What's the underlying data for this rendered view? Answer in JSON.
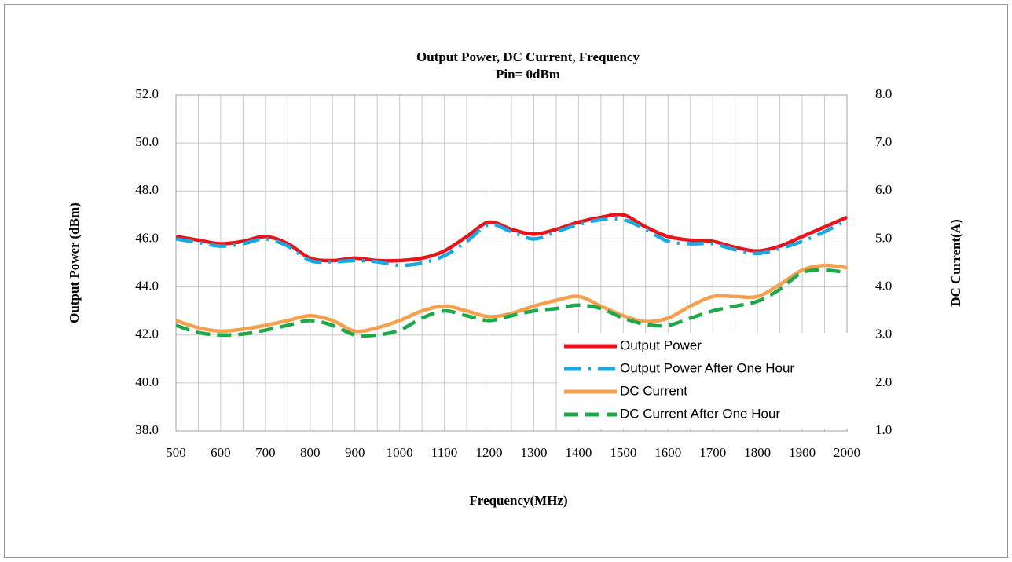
{
  "chart_data": {
    "type": "line",
    "title": "Output Power, DC Current,  Frequency",
    "subtitle": "Pin= 0dBm",
    "x_label": "Frequency(MHz)",
    "y_label": "Output Power (dBm)",
    "y2_label": "DC Current(A)",
    "x": [
      500,
      550,
      600,
      650,
      700,
      750,
      800,
      850,
      900,
      950,
      1000,
      1050,
      1100,
      1150,
      1200,
      1250,
      1300,
      1350,
      1400,
      1450,
      1500,
      1550,
      1600,
      1650,
      1700,
      1750,
      1800,
      1850,
      1900,
      1950,
      2000
    ],
    "xlim": [
      500,
      2000
    ],
    "xticks": [
      500,
      600,
      700,
      800,
      900,
      1000,
      1100,
      1200,
      1300,
      1400,
      1500,
      1600,
      1700,
      1800,
      1900,
      2000
    ],
    "ylim": [
      38,
      52
    ],
    "yticks": [
      {
        "value": 38,
        "label": "38.0"
      },
      {
        "value": 40,
        "label": "40.0"
      },
      {
        "value": 42,
        "label": "42.0"
      },
      {
        "value": 44,
        "label": "44.0"
      },
      {
        "value": 46,
        "label": "46.0"
      },
      {
        "value": 48,
        "label": "48.0"
      },
      {
        "value": 50,
        "label": "50.0"
      },
      {
        "value": 52,
        "label": "52.0"
      }
    ],
    "y2lim": [
      1,
      8
    ],
    "y2ticks": [
      {
        "value": 1,
        "label": "1.0"
      },
      {
        "value": 2,
        "label": "2.0"
      },
      {
        "value": 3,
        "label": "3.0"
      },
      {
        "value": 4,
        "label": "4.0"
      },
      {
        "value": 5,
        "label": "5.0"
      },
      {
        "value": 6,
        "label": "6.0"
      },
      {
        "value": 7,
        "label": "7.0"
      },
      {
        "value": 8,
        "label": "8.0"
      }
    ],
    "grid": true,
    "legend": "lower-right",
    "series": [
      {
        "name": "Output Power",
        "color": "#e8141b",
        "style": "solid",
        "values": [
          46.1,
          45.95,
          45.8,
          45.9,
          46.1,
          45.8,
          45.2,
          45.1,
          45.2,
          45.1,
          45.1,
          45.2,
          45.5,
          46.1,
          46.7,
          46.4,
          46.2,
          46.4,
          46.7,
          46.9,
          47.0,
          46.5,
          46.1,
          45.95,
          45.9,
          45.65,
          45.5,
          45.7,
          46.1,
          46.5,
          46.9
        ]
      },
      {
        "name": "Output Power After One Hour",
        "color": "#1ba8e0",
        "style": "dash-dot",
        "values": [
          46.0,
          45.85,
          45.7,
          45.8,
          46.0,
          45.7,
          45.1,
          45.05,
          45.1,
          45.05,
          44.9,
          45.0,
          45.3,
          45.9,
          46.6,
          46.3,
          46.0,
          46.3,
          46.6,
          46.8,
          46.8,
          46.4,
          45.9,
          45.8,
          45.8,
          45.55,
          45.4,
          45.6,
          45.9,
          46.3,
          46.8
        ]
      },
      {
        "name": "DC Current",
        "color": "#f5a04e",
        "style": "solid",
        "axis": "y2",
        "values": [
          3.3,
          3.15,
          3.08,
          3.12,
          3.2,
          3.3,
          3.4,
          3.3,
          3.08,
          3.15,
          3.3,
          3.5,
          3.6,
          3.5,
          3.38,
          3.45,
          3.6,
          3.72,
          3.8,
          3.6,
          3.4,
          3.28,
          3.35,
          3.6,
          3.8,
          3.8,
          3.8,
          4.05,
          4.35,
          4.45,
          4.4
        ]
      },
      {
        "name": "DC Current After One Hour",
        "color": "#1fa84a",
        "style": "dash",
        "axis": "y2",
        "values": [
          3.2,
          3.05,
          3.0,
          3.02,
          3.1,
          3.2,
          3.3,
          3.2,
          3.0,
          3.0,
          3.1,
          3.35,
          3.5,
          3.4,
          3.3,
          3.4,
          3.5,
          3.55,
          3.62,
          3.55,
          3.35,
          3.22,
          3.2,
          3.35,
          3.5,
          3.6,
          3.7,
          3.95,
          4.3,
          4.35,
          4.3
        ]
      }
    ]
  }
}
